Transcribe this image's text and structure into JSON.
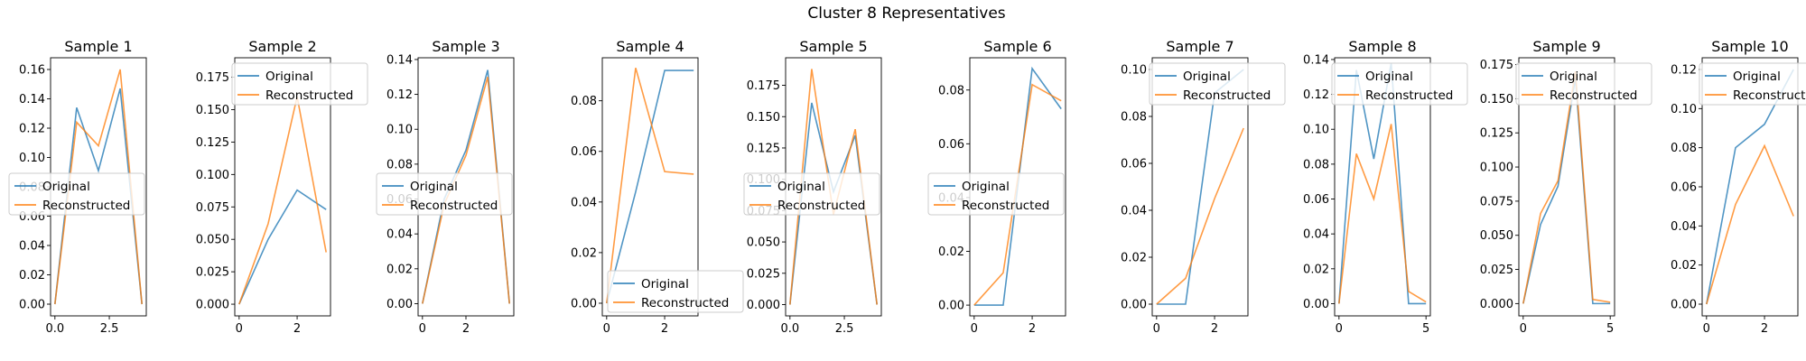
{
  "figure": {
    "suptitle": "Cluster 8 Representatives"
  },
  "colors": {
    "original": "#1f77b4",
    "reconstructed": "#ff7f0e"
  },
  "chart_data": [
    {
      "type": "line",
      "title": "Sample 1",
      "legend": {
        "location": "center-left",
        "entries": [
          "Original",
          "Reconstructed"
        ]
      },
      "xlim": [
        -0.2,
        4.2
      ],
      "ylim": [
        -0.008,
        0.168
      ],
      "xticks": [
        0.0,
        2.5
      ],
      "xtick_labels": [
        "0.0",
        "2.5"
      ],
      "yticks": [
        0,
        0.02,
        0.04,
        0.06,
        0.08,
        0.1,
        0.12,
        0.14,
        0.16
      ],
      "ytick_labels": [
        "0.00",
        "0.02",
        "0.04",
        "0.06",
        "0.08",
        "0.10",
        "0.12",
        "0.14",
        "0.16"
      ],
      "series": [
        {
          "name": "Original",
          "x": [
            0,
            1,
            2,
            3,
            4
          ],
          "y": [
            0.0,
            0.134,
            0.091,
            0.147,
            0.0
          ]
        },
        {
          "name": "Reconstructed",
          "x": [
            0,
            1,
            2,
            3,
            4
          ],
          "y": [
            0.0,
            0.124,
            0.108,
            0.16,
            0.0
          ]
        }
      ]
    },
    {
      "type": "line",
      "title": "Sample 2",
      "legend": {
        "location": "upper-left",
        "entries": [
          "Original",
          "Reconstructed"
        ]
      },
      "xlim": [
        -0.15,
        3.15
      ],
      "ylim": [
        -0.009,
        0.19
      ],
      "xticks": [
        0,
        2
      ],
      "xtick_labels": [
        "0",
        "2"
      ],
      "yticks": [
        0,
        0.025,
        0.05,
        0.075,
        0.1,
        0.125,
        0.15,
        0.175
      ],
      "ytick_labels": [
        "0.000",
        "0.025",
        "0.050",
        "0.075",
        "0.100",
        "0.125",
        "0.150",
        "0.175"
      ],
      "series": [
        {
          "name": "Original",
          "x": [
            0,
            1,
            2,
            3
          ],
          "y": [
            0.0,
            0.05,
            0.088,
            0.073
          ]
        },
        {
          "name": "Reconstructed",
          "x": [
            0,
            1,
            2,
            3
          ],
          "y": [
            0.0,
            0.062,
            0.16,
            0.04
          ]
        }
      ]
    },
    {
      "type": "line",
      "title": "Sample 3",
      "legend": {
        "location": "center-left",
        "entries": [
          "Original",
          "Reconstructed"
        ]
      },
      "xlim": [
        -0.2,
        4.2
      ],
      "ylim": [
        -0.007,
        0.141
      ],
      "xticks": [
        0,
        2
      ],
      "xtick_labels": [
        "0",
        "2"
      ],
      "yticks": [
        0,
        0.02,
        0.04,
        0.06,
        0.08,
        0.1,
        0.12,
        0.14
      ],
      "ytick_labels": [
        "0.00",
        "0.02",
        "0.04",
        "0.06",
        "0.08",
        "0.10",
        "0.12",
        "0.14"
      ],
      "series": [
        {
          "name": "Original",
          "x": [
            0,
            1,
            2,
            3,
            4
          ],
          "y": [
            0.0,
            0.06,
            0.088,
            0.134,
            0.0
          ]
        },
        {
          "name": "Reconstructed",
          "x": [
            0,
            1,
            2,
            3,
            4
          ],
          "y": [
            0.0,
            0.057,
            0.085,
            0.13,
            0.0
          ]
        }
      ]
    },
    {
      "type": "line",
      "title": "Sample 4",
      "legend": {
        "location": "lower-left",
        "entries": [
          "Original",
          "Reconstructed"
        ]
      },
      "xlim": [
        -0.15,
        3.15
      ],
      "ylim": [
        -0.005,
        0.097
      ],
      "xticks": [
        0,
        2
      ],
      "xtick_labels": [
        "0",
        "2"
      ],
      "yticks": [
        0,
        0.02,
        0.04,
        0.06,
        0.08
      ],
      "ytick_labels": [
        "0.00",
        "0.02",
        "0.04",
        "0.06",
        "0.08"
      ],
      "series": [
        {
          "name": "Original",
          "x": [
            0,
            1,
            2,
            3
          ],
          "y": [
            0.0,
            0.044,
            0.092,
            0.092
          ]
        },
        {
          "name": "Reconstructed",
          "x": [
            0,
            1,
            2,
            3
          ],
          "y": [
            0.0,
            0.093,
            0.052,
            0.051
          ]
        }
      ]
    },
    {
      "type": "line",
      "title": "Sample 5",
      "legend": {
        "location": "center-left",
        "entries": [
          "Original",
          "Reconstructed"
        ]
      },
      "xlim": [
        -0.2,
        4.2
      ],
      "ylim": [
        -0.009,
        0.197
      ],
      "xticks": [
        0.0,
        2.5
      ],
      "xtick_labels": [
        "0.0",
        "2.5"
      ],
      "yticks": [
        0,
        0.025,
        0.05,
        0.075,
        0.1,
        0.125,
        0.15,
        0.175
      ],
      "ytick_labels": [
        "0.000",
        "0.025",
        "0.050",
        "0.075",
        "0.100",
        "0.125",
        "0.150",
        "0.175"
      ],
      "series": [
        {
          "name": "Original",
          "x": [
            0,
            1,
            2,
            3,
            4
          ],
          "y": [
            0.0,
            0.161,
            0.09,
            0.135,
            0.0
          ]
        },
        {
          "name": "Reconstructed",
          "x": [
            0,
            1,
            2,
            3,
            4
          ],
          "y": [
            0.0,
            0.188,
            0.072,
            0.14,
            0.0
          ]
        }
      ]
    },
    {
      "type": "line",
      "title": "Sample 6",
      "legend": {
        "location": "center-left",
        "entries": [
          "Original",
          "Reconstructed"
        ]
      },
      "xlim": [
        -0.15,
        3.15
      ],
      "ylim": [
        -0.004,
        0.092
      ],
      "xticks": [
        0,
        2
      ],
      "xtick_labels": [
        "0",
        "2"
      ],
      "yticks": [
        0,
        0.02,
        0.04,
        0.06,
        0.08
      ],
      "ytick_labels": [
        "0.00",
        "0.02",
        "0.04",
        "0.06",
        "0.08"
      ],
      "series": [
        {
          "name": "Original",
          "x": [
            0,
            1,
            2,
            3
          ],
          "y": [
            0.0,
            0.0,
            0.088,
            0.073
          ]
        },
        {
          "name": "Reconstructed",
          "x": [
            0,
            1,
            2,
            3
          ],
          "y": [
            0.0,
            0.012,
            0.082,
            0.076
          ]
        }
      ]
    },
    {
      "type": "line",
      "title": "Sample 7",
      "legend": {
        "location": "upper-left",
        "entries": [
          "Original",
          "Reconstructed"
        ]
      },
      "xlim": [
        -0.15,
        3.15
      ],
      "ylim": [
        -0.005,
        0.105
      ],
      "xticks": [
        0,
        2
      ],
      "xtick_labels": [
        "0",
        "2"
      ],
      "yticks": [
        0,
        0.02,
        0.04,
        0.06,
        0.08,
        0.1
      ],
      "ytick_labels": [
        "0.00",
        "0.02",
        "0.04",
        "0.06",
        "0.08",
        "0.10"
      ],
      "series": [
        {
          "name": "Original",
          "x": [
            0,
            1,
            2,
            3
          ],
          "y": [
            0.0,
            0.0,
            0.09,
            0.1
          ]
        },
        {
          "name": "Reconstructed",
          "x": [
            0,
            1,
            2,
            3
          ],
          "y": [
            0.0,
            0.011,
            0.045,
            0.075
          ]
        }
      ]
    },
    {
      "type": "line",
      "title": "Sample 8",
      "legend": {
        "location": "upper-left",
        "entries": [
          "Original",
          "Reconstructed"
        ]
      },
      "xlim": [
        -0.25,
        5.25
      ],
      "ylim": [
        -0.007,
        0.141
      ],
      "xticks": [
        0,
        5
      ],
      "xtick_labels": [
        "0",
        "5"
      ],
      "yticks": [
        0,
        0.02,
        0.04,
        0.06,
        0.08,
        0.1,
        0.12,
        0.14
      ],
      "ytick_labels": [
        "0.00",
        "0.02",
        "0.04",
        "0.06",
        "0.08",
        "0.10",
        "0.12",
        "0.14"
      ],
      "series": [
        {
          "name": "Original",
          "x": [
            0,
            1,
            2,
            3,
            4,
            5
          ],
          "y": [
            0.0,
            0.134,
            0.083,
            0.138,
            0.0,
            0.0
          ]
        },
        {
          "name": "Reconstructed",
          "x": [
            0,
            1,
            2,
            3,
            4,
            5
          ],
          "y": [
            0.0,
            0.086,
            0.06,
            0.103,
            0.007,
            0.001
          ]
        }
      ]
    },
    {
      "type": "line",
      "title": "Sample 9",
      "legend": {
        "location": "upper-left",
        "entries": [
          "Original",
          "Reconstructed"
        ]
      },
      "xlim": [
        -0.25,
        5.25
      ],
      "ylim": [
        -0.009,
        0.18
      ],
      "xticks": [
        0,
        5
      ],
      "xtick_labels": [
        "0",
        "5"
      ],
      "yticks": [
        0,
        0.025,
        0.05,
        0.075,
        0.1,
        0.125,
        0.15,
        0.175
      ],
      "ytick_labels": [
        "0.000",
        "0.025",
        "0.050",
        "0.075",
        "0.100",
        "0.125",
        "0.150",
        "0.175"
      ],
      "series": [
        {
          "name": "Original",
          "x": [
            0,
            1,
            2,
            3,
            4,
            5
          ],
          "y": [
            0.0,
            0.058,
            0.086,
            0.165,
            0.0,
            0.0
          ]
        },
        {
          "name": "Reconstructed",
          "x": [
            0,
            1,
            2,
            3,
            4,
            5
          ],
          "y": [
            0.0,
            0.066,
            0.09,
            0.17,
            0.003,
            0.001
          ]
        }
      ]
    },
    {
      "type": "line",
      "title": "Sample 10",
      "legend": {
        "location": "upper-left",
        "entries": [
          "Original",
          "Reconstructed"
        ]
      },
      "xlim": [
        -0.15,
        3.15
      ],
      "ylim": [
        -0.006,
        0.126
      ],
      "xticks": [
        0,
        2
      ],
      "xtick_labels": [
        "0",
        "2"
      ],
      "yticks": [
        0,
        0.02,
        0.04,
        0.06,
        0.08,
        0.1,
        0.12
      ],
      "ytick_labels": [
        "0.00",
        "0.02",
        "0.04",
        "0.06",
        "0.08",
        "0.10",
        "0.12"
      ],
      "series": [
        {
          "name": "Original",
          "x": [
            0,
            1,
            2,
            3
          ],
          "y": [
            0.0,
            0.08,
            0.092,
            0.12
          ]
        },
        {
          "name": "Reconstructed",
          "x": [
            0,
            1,
            2,
            3
          ],
          "y": [
            0.0,
            0.051,
            0.081,
            0.045
          ]
        }
      ]
    }
  ]
}
